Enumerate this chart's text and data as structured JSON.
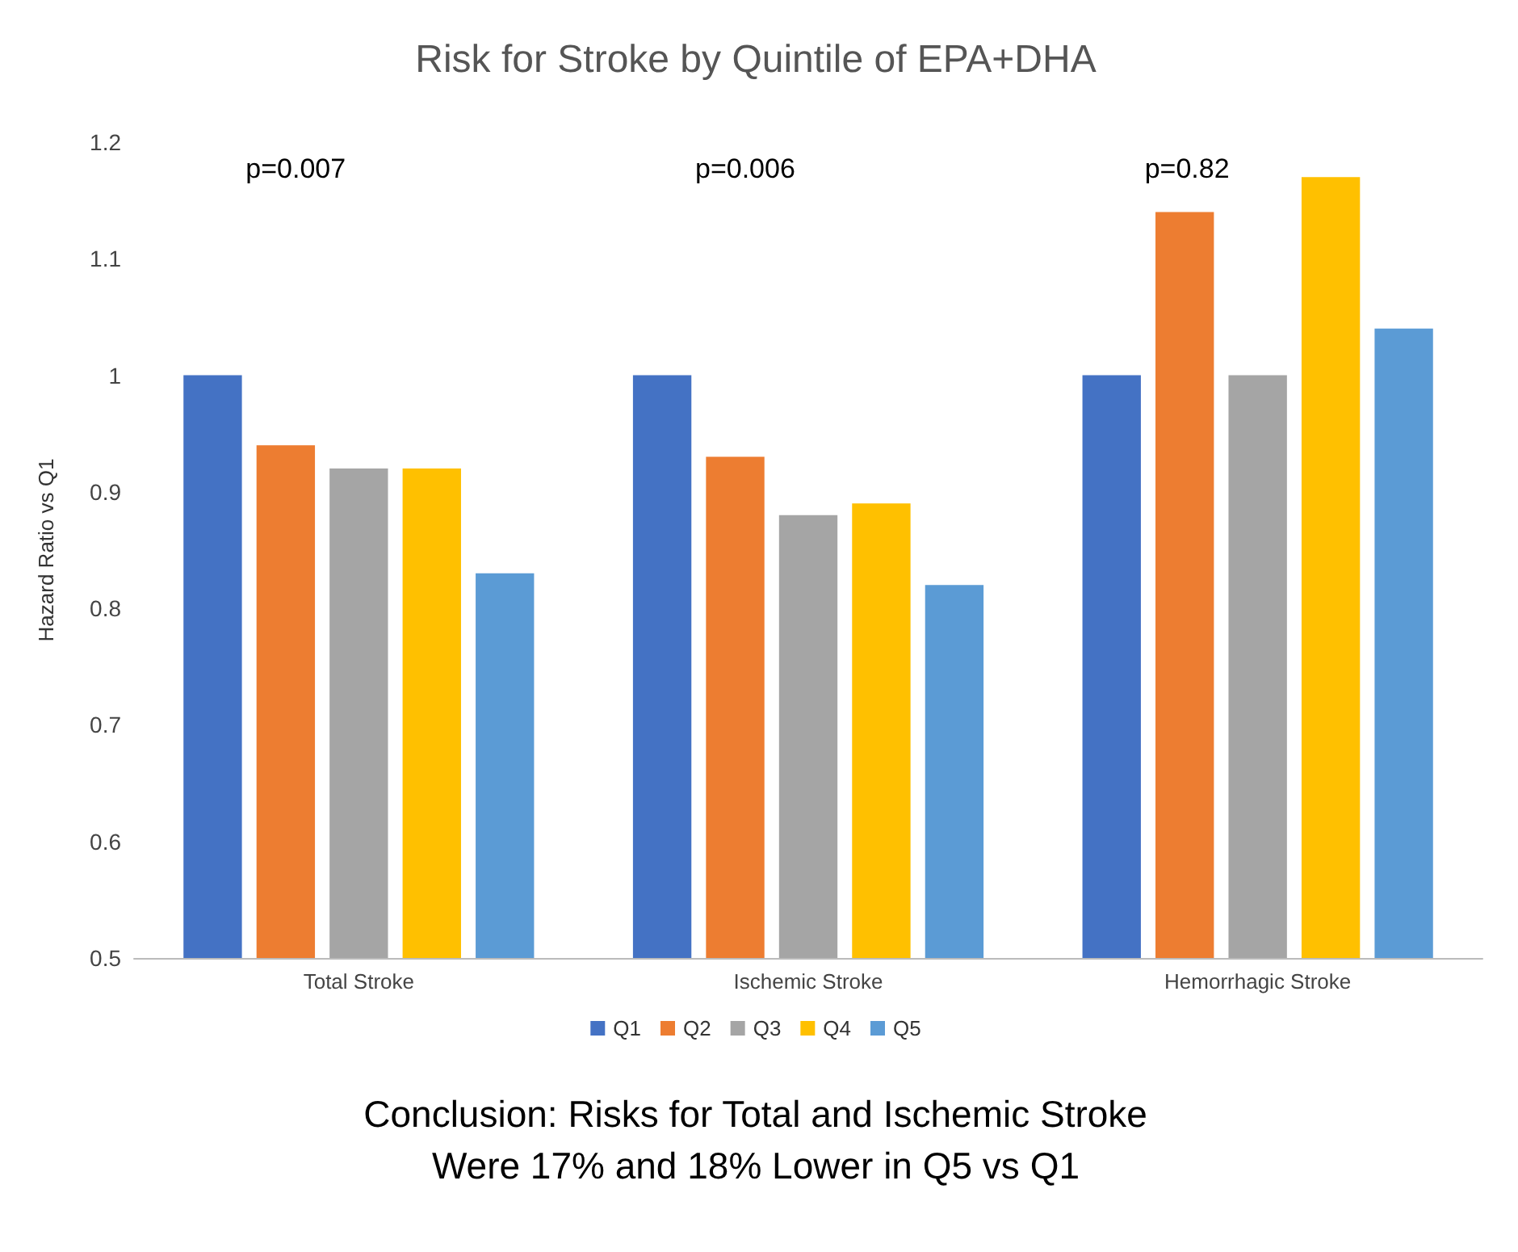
{
  "chart_data": {
    "type": "bar",
    "title": "Risk for Stroke by Quintile of EPA+DHA",
    "ylabel": "Hazard Ratio vs Q1",
    "categories": [
      "Total Stroke",
      "Ischemic Stroke",
      "Hemorrhagic Stroke"
    ],
    "series": [
      {
        "name": "Q1",
        "color": "#4472c4",
        "values": [
          1.0,
          1.0,
          1.0
        ]
      },
      {
        "name": "Q2",
        "color": "#ed7d31",
        "values": [
          0.94,
          0.93,
          1.14
        ]
      },
      {
        "name": "Q3",
        "color": "#a5a5a5",
        "values": [
          0.92,
          0.88,
          1.0
        ]
      },
      {
        "name": "Q4",
        "color": "#ffc000",
        "values": [
          0.92,
          0.89,
          1.17
        ]
      },
      {
        "name": "Q5",
        "color": "#5b9bd5",
        "values": [
          0.83,
          0.82,
          1.04
        ]
      }
    ],
    "ylim": [
      0.5,
      1.2
    ],
    "yticks": [
      0.5,
      0.6,
      0.7,
      0.8,
      0.9,
      1,
      1.1,
      1.2
    ],
    "grid": false,
    "legend": "bottom",
    "annotations": [
      "p=0.007",
      "p=0.006",
      "p=0.82",
      "Conclusion: Risks for Total and Ischemic Stroke",
      "Were 17% and 18% Lower in Q5 vs Q1"
    ]
  }
}
